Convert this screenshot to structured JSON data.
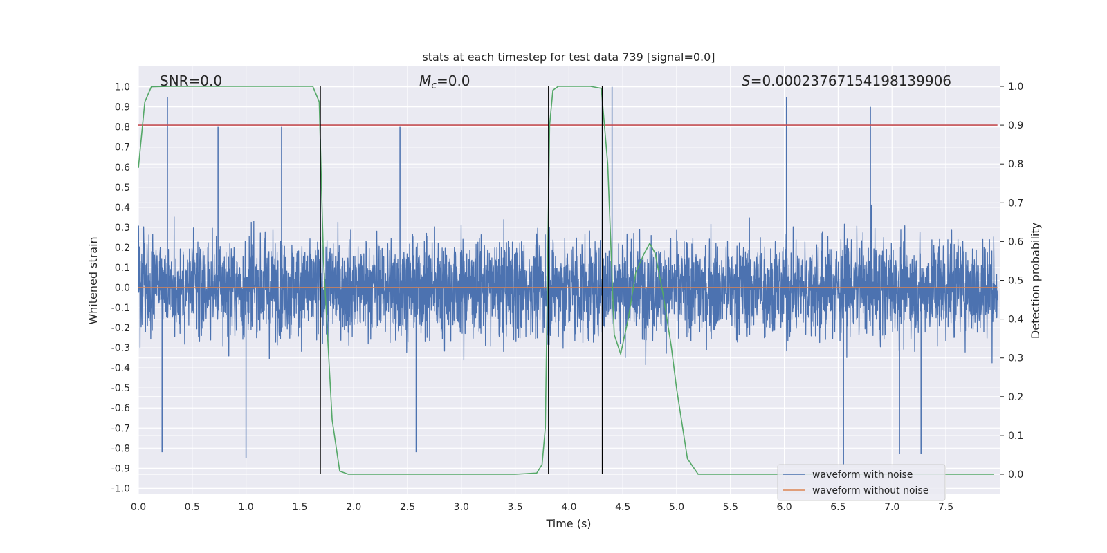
{
  "chart_data": {
    "type": "line",
    "title": "stats at each timestep for test data 739 [signal=0.0]",
    "xlabel": "Time (s)",
    "ylabel": "Whitened strain",
    "y2label": "Detection probability",
    "xlim": [
      0.0,
      8.0
    ],
    "ylim": [
      -1.05,
      1.05
    ],
    "y2lim": [
      -0.05,
      1.03
    ],
    "xticks": [
      "0.0",
      "0.5",
      "1.0",
      "1.5",
      "2.0",
      "2.5",
      "3.0",
      "3.5",
      "4.0",
      "4.5",
      "5.0",
      "5.5",
      "6.0",
      "6.5",
      "7.0",
      "7.5"
    ],
    "yticks": [
      "1.0",
      "0.9",
      "0.8",
      "0.7",
      "0.6",
      "0.5",
      "0.4",
      "0.3",
      "0.2",
      "0.1",
      "0.0",
      "-0.1",
      "-0.2",
      "-0.3",
      "-0.4",
      "-0.5",
      "-0.6",
      "-0.7",
      "-0.8",
      "-0.9",
      "-1.0"
    ],
    "y2ticks": [
      "1.0",
      "0.9",
      "0.8",
      "0.7",
      "0.6",
      "0.5",
      "0.4",
      "0.3",
      "0.2",
      "0.1",
      "0.0"
    ],
    "grid": true,
    "legend_position": "lower-right",
    "annotations": {
      "snr": "SNR=0.0",
      "mc_symbol": "M",
      "mc_sub": "c",
      "mc_value": "=0.0",
      "s_symbol": "S",
      "s_value": "=0.00023767154198139906"
    },
    "series": [
      {
        "name": "waveform with noise",
        "color": "#4c72b0",
        "axis": "left",
        "description": "noise band approx within [-0.35, 0.35] with spikes",
        "spikes": [
          {
            "x": 0.27,
            "y": 0.95
          },
          {
            "x": 0.22,
            "y": -0.82
          },
          {
            "x": 0.74,
            "y": 0.8
          },
          {
            "x": 1.0,
            "y": -0.85
          },
          {
            "x": 1.33,
            "y": 0.8
          },
          {
            "x": 1.69,
            "y": 0.74
          },
          {
            "x": 2.43,
            "y": 0.8
          },
          {
            "x": 2.58,
            "y": -0.82
          },
          {
            "x": 4.4,
            "y": 1.0
          },
          {
            "x": 4.31,
            "y": 0.98
          },
          {
            "x": 6.02,
            "y": 0.95
          },
          {
            "x": 6.8,
            "y": 0.9
          },
          {
            "x": 6.55,
            "y": -0.88
          },
          {
            "x": 7.07,
            "y": -0.83
          },
          {
            "x": 7.27,
            "y": -0.83
          }
        ]
      },
      {
        "name": "waveform without noise",
        "color": "#dd8452",
        "axis": "left",
        "x": [
          0.0,
          7.98
        ],
        "y": [
          0.0,
          0.0
        ]
      },
      {
        "name": "",
        "color": "#55a868",
        "axis": "right",
        "x": [
          0.0,
          0.06,
          0.12,
          0.3,
          1.0,
          1.5,
          1.62,
          1.68,
          1.72,
          1.8,
          1.87,
          1.95,
          2.5,
          3.0,
          3.5,
          3.7,
          3.75,
          3.78,
          3.82,
          3.85,
          3.9,
          4.0,
          4.2,
          4.3,
          4.36,
          4.42,
          4.48,
          4.55,
          4.62,
          4.7,
          4.75,
          4.8,
          4.87,
          4.95,
          5.0,
          5.1,
          5.2,
          5.5,
          6.0,
          7.0,
          7.95
        ],
        "y": [
          0.79,
          0.96,
          0.999,
          1.0,
          1.0,
          1.0,
          1.0,
          0.96,
          0.55,
          0.14,
          0.008,
          0.0,
          0.0,
          0.0,
          0.0,
          0.003,
          0.025,
          0.12,
          0.9,
          0.99,
          1.0,
          1.0,
          1.0,
          0.995,
          0.8,
          0.36,
          0.31,
          0.4,
          0.52,
          0.57,
          0.595,
          0.57,
          0.47,
          0.33,
          0.22,
          0.04,
          0.0,
          0.0,
          0.0,
          0.0,
          0.0
        ]
      },
      {
        "name": "",
        "color": "#c44e52",
        "axis": "right",
        "x": [
          0.0,
          7.98
        ],
        "y": [
          0.9,
          0.9
        ]
      }
    ],
    "vlines": [
      {
        "x": 1.69,
        "color": "#000000"
      },
      {
        "x": 3.81,
        "color": "#000000"
      },
      {
        "x": 4.31,
        "color": "#000000"
      }
    ]
  }
}
